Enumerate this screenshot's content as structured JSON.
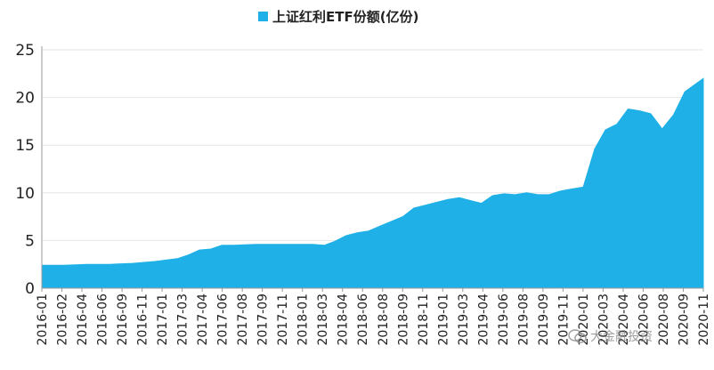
{
  "legend": {
    "label": "上证红利ETF份额(亿份)",
    "color": "#1EB0E6"
  },
  "watermark": {
    "text": "大金融投资"
  },
  "chart_data": {
    "type": "area",
    "title": "",
    "xlabel": "",
    "ylabel": "",
    "ylim": [
      0,
      25
    ],
    "yticks": [
      0,
      5,
      10,
      15,
      20,
      25
    ],
    "grid": "horizontal",
    "legend_position": "top-center",
    "x_tick_labels": [
      "2016-01",
      "2016-02",
      "2016-04",
      "2016-06",
      "2016-09",
      "2016-11",
      "2017-01",
      "2017-03",
      "2017-04",
      "2017-06",
      "2017-08",
      "2017-09",
      "2017-11",
      "2018-01",
      "2018-03",
      "2018-04",
      "2018-06",
      "2018-08",
      "2018-09",
      "2018-11",
      "2019-01",
      "2019-03",
      "2019-04",
      "2019-06",
      "2019-08",
      "2019-09",
      "2019-11",
      "2020-01",
      "2020-03",
      "2020-04",
      "2020-06",
      "2020-08",
      "2020-09",
      "2020-11"
    ],
    "series": [
      {
        "name": "上证红利ETF份额(亿份)",
        "color": "#1EB0E6",
        "x": [
          "2016-01",
          "2016-03",
          "2016-05",
          "2016-07",
          "2016-09",
          "2016-11",
          "2017-01",
          "2017-02",
          "2017-03",
          "2017-04",
          "2017-05",
          "2017-06",
          "2017-08",
          "2017-10",
          "2017-12",
          "2018-01",
          "2018-02",
          "2018-03",
          "2018-04",
          "2018-05",
          "2018-06",
          "2018-07",
          "2018-08",
          "2018-09",
          "2018-10",
          "2018-11",
          "2018-12",
          "2019-01",
          "2019-02",
          "2019-03",
          "2019-04",
          "2019-05",
          "2019-06",
          "2019-07",
          "2019-08",
          "2019-09",
          "2019-10",
          "2019-11",
          "2019-12",
          "2020-01",
          "2020-02",
          "2020-03",
          "2020-04",
          "2020-05",
          "2020-06",
          "2020-07",
          "2020-08",
          "2020-09",
          "2020-10",
          "2020-11"
        ],
        "values": [
          2.4,
          2.4,
          2.5,
          2.5,
          2.6,
          2.8,
          3.1,
          3.5,
          4.0,
          4.1,
          4.5,
          4.5,
          4.6,
          4.6,
          4.6,
          4.6,
          4.5,
          4.9,
          5.5,
          5.8,
          6.0,
          6.5,
          7.0,
          7.5,
          8.4,
          8.7,
          9.0,
          9.3,
          9.5,
          9.2,
          8.9,
          9.7,
          9.9,
          9.8,
          10.0,
          9.8,
          9.8,
          10.2,
          10.4,
          10.6,
          14.6,
          16.6,
          17.2,
          18.8,
          18.6,
          18.3,
          16.7,
          18.2,
          20.6,
          22.0
        ]
      }
    ]
  }
}
